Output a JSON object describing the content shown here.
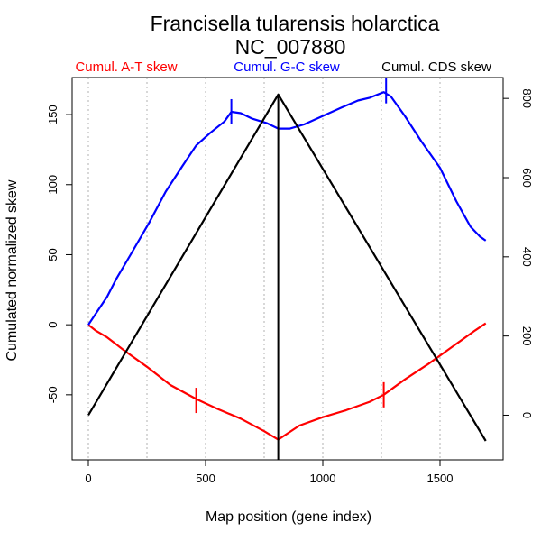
{
  "chart_data": {
    "type": "line",
    "title": "Francisella tularensis holarctica",
    "subtitle": "NC_007880",
    "xlabel": "Map position (gene index)",
    "ylabel": "Cumulated normalized skew",
    "xlim": [
      0,
      1700
    ],
    "ylim_left": [
      -90,
      170
    ],
    "ylim_right": [
      -90,
      830
    ],
    "x_ticks": [
      0,
      500,
      1000,
      1500
    ],
    "y_left_ticks": [
      -50,
      0,
      50,
      100,
      150
    ],
    "y_right_ticks": [
      0,
      200,
      400,
      600,
      800
    ],
    "grid": "vertical-dotted",
    "legend": [
      {
        "label": "Cumul. A-T skew",
        "color": "#ff0000"
      },
      {
        "label": "Cumul. G-C skew",
        "color": "#0000ff"
      },
      {
        "label": "Cumul. CDS skew",
        "color": "#000000"
      }
    ],
    "series": [
      {
        "name": "Cumul. A-T skew",
        "color": "#ff0000",
        "axis": "left",
        "x": [
          0,
          30,
          80,
          150,
          250,
          350,
          460,
          550,
          650,
          750,
          810,
          900,
          1000,
          1100,
          1200,
          1260,
          1350,
          1450,
          1550,
          1650,
          1695
        ],
        "y": [
          0,
          -4,
          -9,
          -18,
          -30,
          -43,
          -53,
          -60,
          -67,
          -76,
          -82,
          -72,
          -66,
          -61,
          -55,
          -50,
          -39,
          -28,
          -16,
          -4,
          1
        ]
      },
      {
        "name": "Cumul. G-C skew",
        "color": "#0000ff",
        "axis": "left",
        "x": [
          0,
          40,
          80,
          120,
          180,
          260,
          330,
          400,
          460,
          520,
          580,
          610,
          650,
          700,
          760,
          810,
          860,
          920,
          1000,
          1080,
          1150,
          1200,
          1260,
          1290,
          1350,
          1420,
          1500,
          1570,
          1630,
          1670,
          1695
        ],
        "y": [
          0,
          10,
          20,
          33,
          50,
          73,
          95,
          113,
          128,
          137,
          145,
          152,
          151,
          147,
          144,
          140,
          140,
          143,
          149,
          155,
          160,
          162,
          166,
          163,
          149,
          131,
          112,
          88,
          70,
          63,
          60
        ]
      },
      {
        "name": "Cumul. CDS skew",
        "color": "#000000",
        "axis": "right",
        "x": [
          0,
          810,
          1695
        ],
        "y": [
          0,
          810,
          -65
        ]
      }
    ],
    "markers": [
      {
        "series": "Cumul. A-T skew",
        "x": 460,
        "y": -54
      },
      {
        "series": "Cumul. A-T skew",
        "x": 1260,
        "y": -50
      },
      {
        "series": "Cumul. G-C skew",
        "x": 610,
        "y": 152
      },
      {
        "series": "Cumul. G-C skew",
        "x": 1270,
        "y": 167
      }
    ],
    "vertical_line": {
      "x": 810
    }
  }
}
